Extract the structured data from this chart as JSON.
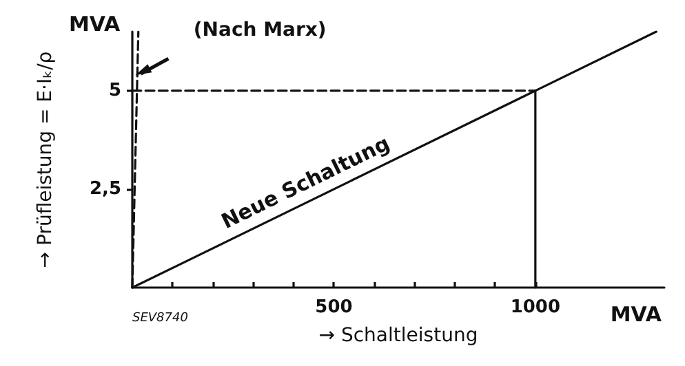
{
  "chart_data": {
    "type": "line",
    "xlabel": "→ Schaltleistung",
    "ylabel": "→ Prüfleistung = E·Iₖ/ρ",
    "xlim": [
      0,
      1320
    ],
    "ylim": [
      0,
      6.5
    ],
    "xticks": [
      {
        "value": 100,
        "label": null
      },
      {
        "value": 200,
        "label": null
      },
      {
        "value": 300,
        "label": null
      },
      {
        "value": 400,
        "label": null
      },
      500,
      {
        "value": 600,
        "label": null
      },
      {
        "value": 700,
        "label": null
      },
      {
        "value": 800,
        "label": null
      },
      {
        "value": 900,
        "label": null
      },
      1000
    ],
    "yticks": [
      {
        "value": 2.5,
        "label": "2,5"
      },
      5
    ],
    "grid": false,
    "legend": false,
    "marker": "none",
    "annotations": [
      "MVA",
      "MVA",
      "SEV8740"
    ],
    "series": [
      {
        "name": "Neue Schaltung",
        "color": "#111111",
        "x": [
          0,
          1000,
          1300
        ],
        "values": [
          0,
          5,
          6.5
        ],
        "line_style": "solid"
      },
      {
        "name": "(Nach Marx)",
        "color": "#111111",
        "x": [
          0,
          15
        ],
        "values": [
          0,
          6.5
        ],
        "line_style": "dashed"
      },
      {
        "color": "#111111",
        "x": [
          0,
          1000
        ],
        "values": [
          5,
          5
        ],
        "line_style": "dashed"
      },
      {
        "color": "#111111",
        "x": [
          1000,
          1000
        ],
        "values": [
          0,
          5
        ],
        "line_style": "solid"
      }
    ]
  }
}
